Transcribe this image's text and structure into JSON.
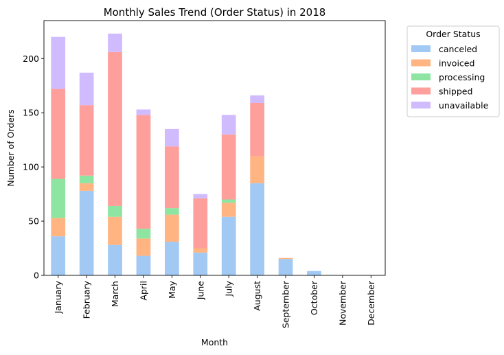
{
  "chart_data": {
    "type": "bar",
    "stacked": true,
    "title": "Monthly Sales Trend (Order Status) in 2018",
    "xlabel": "Month",
    "ylabel": "Number of Orders",
    "ylim": [
      0,
      235
    ],
    "yticks": [
      0,
      50,
      100,
      150,
      200
    ],
    "grid": false,
    "legend": {
      "title": "Order Status",
      "placement": "outside-top-right"
    },
    "categories": [
      "January",
      "February",
      "March",
      "April",
      "May",
      "June",
      "July",
      "August",
      "September",
      "October",
      "November",
      "December"
    ],
    "series": [
      {
        "name": "canceled",
        "color": "#a1c9f4",
        "values": [
          36,
          78,
          28,
          18,
          31,
          21,
          54,
          85,
          15,
          4,
          0,
          0
        ]
      },
      {
        "name": "invoiced",
        "color": "#ffb482",
        "values": [
          17,
          7,
          26,
          16,
          25,
          4,
          13,
          25,
          1,
          0,
          0,
          0
        ]
      },
      {
        "name": "processing",
        "color": "#8de5a1",
        "values": [
          36,
          7,
          10,
          9,
          6,
          0,
          3,
          0,
          0,
          0,
          0,
          0
        ]
      },
      {
        "name": "shipped",
        "color": "#ff9f9b",
        "values": [
          83,
          65,
          142,
          105,
          57,
          46,
          60,
          49,
          0,
          0,
          0,
          0
        ]
      },
      {
        "name": "unavailable",
        "color": "#d0bbff",
        "values": [
          48,
          30,
          17,
          5,
          16,
          4,
          18,
          7,
          0,
          0,
          0,
          0
        ]
      }
    ]
  }
}
